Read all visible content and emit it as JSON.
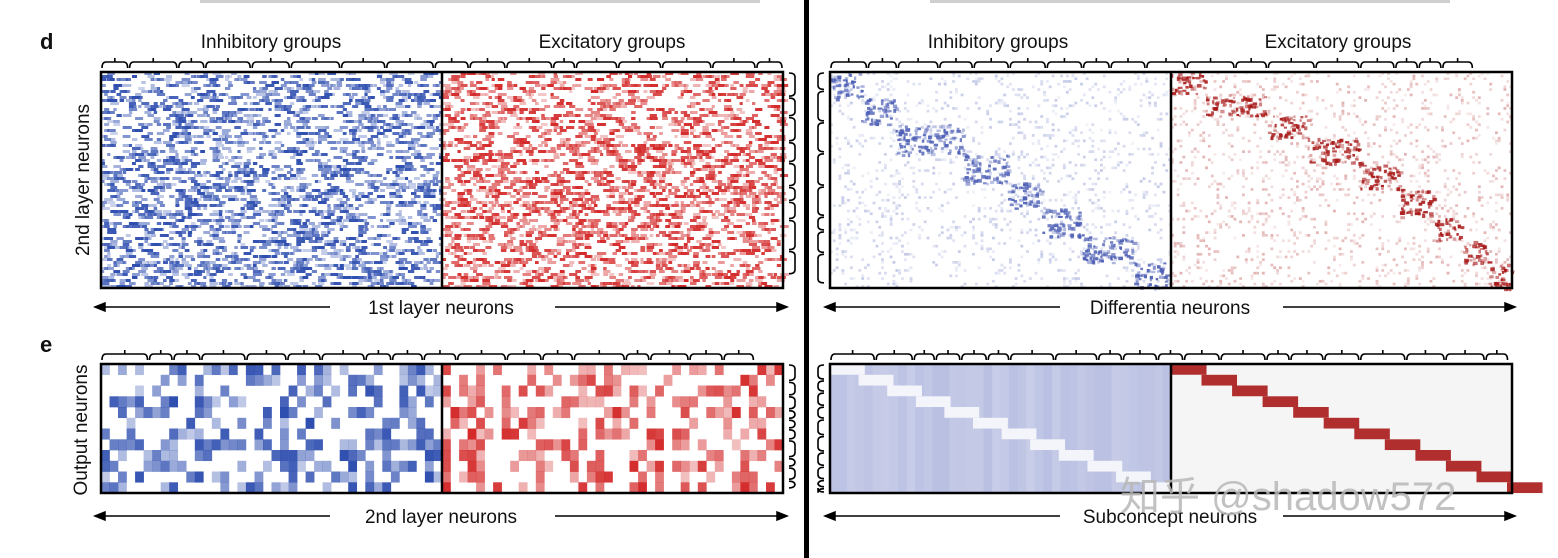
{
  "panels": {
    "d": {
      "letter": "d",
      "left": {
        "top_left_label": "Inhibitory groups",
        "top_right_label": "Excitatory groups",
        "y_label": "2nd layer neurons",
        "x_label": "1st layer neurons"
      },
      "right": {
        "top_left_label": "Inhibitory groups",
        "top_right_label": "Excitatory groups",
        "x_label": "Differentia neurons"
      }
    },
    "e": {
      "letter": "e",
      "left": {
        "y_label": "Output neurons",
        "x_label": "2nd layer neurons"
      },
      "right": {
        "x_label": "Subconcept neurons"
      }
    }
  },
  "watermark": "知乎 @shadow572",
  "colors": {
    "inhibitory": "#2f4fb0",
    "excitatory": "#d42a2a",
    "diag_blue": "#4d5fb5",
    "diag_red": "#a81818",
    "frame": "#000000",
    "divider": "#000000"
  }
}
